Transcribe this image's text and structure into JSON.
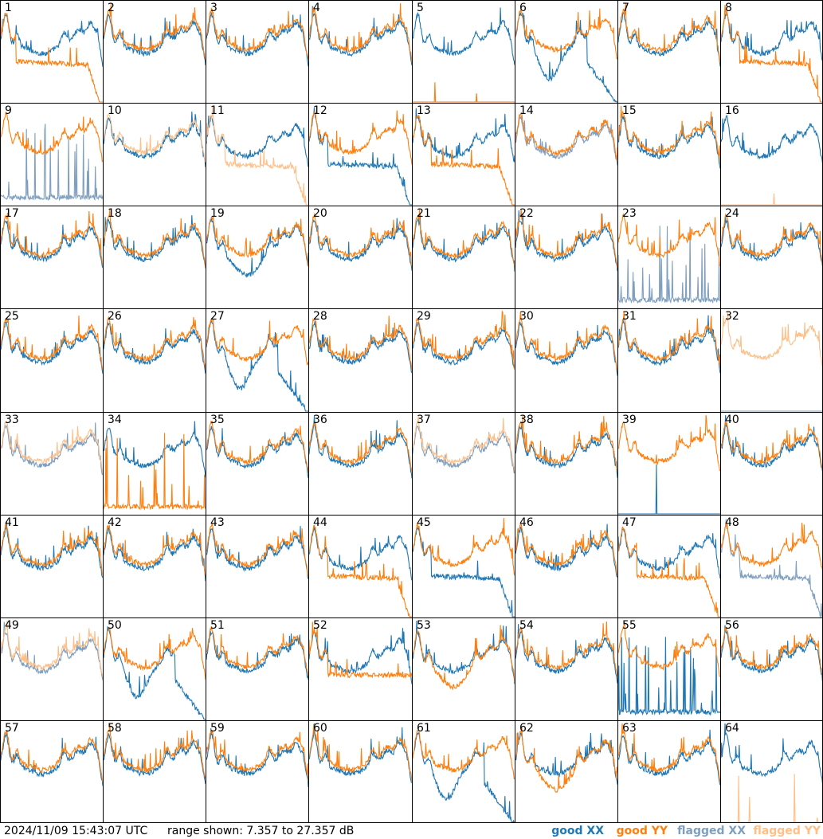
{
  "footer": {
    "timestamp": "2024/11/09 15:43:07 UTC",
    "range_text": "range shown: 7.357 to 27.357 dB"
  },
  "legend": [
    {
      "label": "good XX",
      "color": "#1f77b4"
    },
    {
      "label": "good YY",
      "color": "#ff7f0e"
    },
    {
      "label": "flagged XX",
      "color": "#7f9fbf"
    },
    {
      "label": "flagged YY",
      "color": "#ffbf87"
    }
  ],
  "chart_data": {
    "type": "line",
    "grid_rows": 8,
    "grid_cols": 8,
    "ylim": [
      7.357,
      27.357
    ],
    "units": "dB",
    "panel_labels": [
      "1",
      "2",
      "3",
      "4",
      "5",
      "6",
      "7",
      "8",
      "9",
      "10",
      "11",
      "12",
      "13",
      "14",
      "15",
      "16",
      "17",
      "18",
      "19",
      "20",
      "21",
      "22",
      "23",
      "24",
      "25",
      "26",
      "27",
      "28",
      "29",
      "30",
      "31",
      "32",
      "33",
      "34",
      "35",
      "36",
      "37",
      "38",
      "39",
      "40",
      "41",
      "42",
      "43",
      "44",
      "45",
      "46",
      "47",
      "48",
      "49",
      "50",
      "51",
      "52",
      "53",
      "54",
      "55",
      "56",
      "57",
      "58",
      "59",
      "60",
      "61",
      "62",
      "63",
      "64"
    ],
    "series_names": [
      "good XX",
      "good YY",
      "flagged XX",
      "flagged YY"
    ],
    "panels": {
      "1": {
        "xx": "good",
        "yy": "good",
        "yyShape": "rolloff"
      },
      "5": {
        "xx": "good",
        "yy": "good",
        "yyShape": "dead"
      },
      "6": {
        "xx": "good",
        "yy": "good",
        "xxShape": "dip_rolloff"
      },
      "8": {
        "xx": "good",
        "yy": "good",
        "yyShape": "flat_rolloff"
      },
      "9": {
        "xx": "flagged",
        "yy": "good",
        "xxShape": "spikes_low"
      },
      "10": {
        "xx": "good",
        "yy": "flagged"
      },
      "11": {
        "xx": "good",
        "yy": "flagged",
        "yyShape": "flat_rolloff"
      },
      "12": {
        "xx": "good",
        "yy": "good",
        "xxShape": "flat_rolloff"
      },
      "13": {
        "xx": "good",
        "yy": "good",
        "yyShape": "flat_rolloff"
      },
      "14": {
        "xx": "flagged",
        "yy": "good"
      },
      "16": {
        "xx": "good",
        "yy": "flagged",
        "yyShape": "dead"
      },
      "19": {
        "xx": "good",
        "yy": "good",
        "xxShape": "dip"
      },
      "23": {
        "xx": "flagged",
        "yy": "good",
        "xxShape": "spikes_low"
      },
      "27": {
        "xx": "good",
        "yy": "good",
        "xxShape": "dip_rolloff"
      },
      "32": {
        "xx": "flagged",
        "yy": "flagged",
        "xxShape": "dead"
      },
      "33": {
        "xx": "flagged",
        "yy": "flagged"
      },
      "34": {
        "xx": "good",
        "yy": "good",
        "yyShape": "spikes_low"
      },
      "37": {
        "xx": "flagged",
        "yy": "flagged"
      },
      "39": {
        "xx": "good",
        "yy": "good",
        "xxShape": "dead"
      },
      "44": {
        "xx": "good",
        "yy": "good",
        "yyShape": "flat_rolloff"
      },
      "45": {
        "xx": "good",
        "yy": "good",
        "xxShape": "flat_rolloff"
      },
      "47": {
        "xx": "good",
        "yy": "good",
        "yyShape": "flat_rolloff"
      },
      "48": {
        "xx": "flagged",
        "yy": "good",
        "xxShape": "flat_rolloff"
      },
      "49": {
        "xx": "flagged",
        "yy": "flagged"
      },
      "50": {
        "xx": "good",
        "yy": "good",
        "xxShape": "dip_rolloff"
      },
      "52": {
        "xx": "good",
        "yy": "good",
        "yyShape": "flat"
      },
      "53": {
        "xx": "good",
        "yy": "good",
        "yyShape": "dip"
      },
      "55": {
        "xx": "good",
        "yy": "good",
        "xxShape": "spikes_low"
      },
      "61": {
        "xx": "good",
        "yy": "good",
        "xxShape": "dip_rolloff"
      },
      "62": {
        "xx": "good",
        "yy": "good",
        "yyShape": "dip"
      },
      "64": {
        "xx": "good",
        "yy": "flagged",
        "yyShape": "dead"
      }
    }
  }
}
